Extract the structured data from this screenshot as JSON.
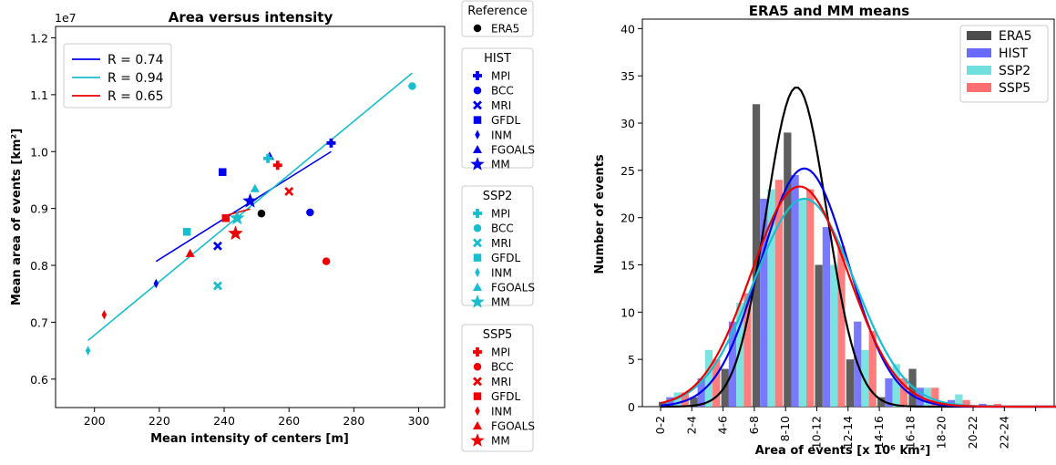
{
  "chart_data": [
    {
      "type": "scatter",
      "title": "Area versus intensity",
      "xlabel": "Mean intensity of centers [m]",
      "ylabel": "Mean area of events [km²]",
      "offset_label": "1e7",
      "xlim": [
        188,
        308
      ],
      "ylim": [
        5500000,
        12200000
      ],
      "xticks": [
        "200",
        "220",
        "240",
        "260",
        "280",
        "300"
      ],
      "yticks": [
        "0.6",
        "0.7",
        "0.8",
        "0.9",
        "1.0",
        "1.1",
        "1.2"
      ],
      "fit_lines": [
        {
          "label": "R = 0.74",
          "color": "#0000ee",
          "x": [
            219,
            273
          ],
          "y": [
            8070000,
            10000000
          ]
        },
        {
          "label": "R = 0.94",
          "color": "#17becf",
          "x": [
            198,
            298
          ],
          "y": [
            6680000,
            11380000
          ]
        },
        {
          "label": "R = 0.65",
          "color": "#ee0000",
          "x": [
            240,
            248
          ],
          "y": [
            8870000,
            8990000
          ]
        }
      ],
      "colors": {
        "HIST": "#0000ee",
        "SSP2": "#17becf",
        "SSP5": "#ee0000",
        "ERA5": "#000000"
      },
      "legend_groups": [
        {
          "title": "Reference",
          "items": [
            {
              "label": "ERA5",
              "marker": "circle"
            }
          ]
        },
        {
          "title": "HIST",
          "items": [
            {
              "label": "MPI",
              "marker": "plus"
            },
            {
              "label": "BCC",
              "marker": "circle"
            },
            {
              "label": "MRI",
              "marker": "x"
            },
            {
              "label": "GFDL",
              "marker": "square"
            },
            {
              "label": "INM",
              "marker": "thin_diamond"
            },
            {
              "label": "FGOALS",
              "marker": "triangle"
            },
            {
              "label": "MM",
              "marker": "star"
            }
          ]
        },
        {
          "title": "SSP2",
          "items": [
            {
              "label": "MPI",
              "marker": "plus"
            },
            {
              "label": "BCC",
              "marker": "circle"
            },
            {
              "label": "MRI",
              "marker": "x"
            },
            {
              "label": "GFDL",
              "marker": "square"
            },
            {
              "label": "INM",
              "marker": "thin_diamond"
            },
            {
              "label": "FGOALS",
              "marker": "triangle"
            },
            {
              "label": "MM",
              "marker": "star"
            }
          ]
        },
        {
          "title": "SSP5",
          "items": [
            {
              "label": "MPI",
              "marker": "plus"
            },
            {
              "label": "BCC",
              "marker": "circle"
            },
            {
              "label": "MRI",
              "marker": "x"
            },
            {
              "label": "GFDL",
              "marker": "square"
            },
            {
              "label": "INM",
              "marker": "thin_diamond"
            },
            {
              "label": "FGOALS",
              "marker": "triangle"
            },
            {
              "label": "MM",
              "marker": "star"
            }
          ]
        }
      ],
      "points": [
        {
          "series": "ERA5",
          "model": "ERA5",
          "marker": "circle",
          "x": 251.5,
          "y": 8910000
        },
        {
          "series": "HIST",
          "model": "MPI",
          "marker": "plus",
          "x": 273,
          "y": 10150000
        },
        {
          "series": "HIST",
          "model": "BCC",
          "marker": "circle",
          "x": 266.5,
          "y": 8930000
        },
        {
          "series": "HIST",
          "model": "MRI",
          "marker": "x",
          "x": 238,
          "y": 8340000
        },
        {
          "series": "HIST",
          "model": "GFDL",
          "marker": "square",
          "x": 239.5,
          "y": 9640000
        },
        {
          "series": "HIST",
          "model": "INM",
          "marker": "thin_diamond",
          "x": 219,
          "y": 7680000
        },
        {
          "series": "HIST",
          "model": "FGOALS",
          "marker": "triangle",
          "x": 254,
          "y": 9920000
        },
        {
          "series": "HIST",
          "model": "MM",
          "marker": "star",
          "x": 248,
          "y": 9130000
        },
        {
          "series": "SSP2",
          "model": "MPI",
          "marker": "plus",
          "x": 253.5,
          "y": 9880000
        },
        {
          "series": "SSP2",
          "model": "BCC",
          "marker": "circle",
          "x": 298,
          "y": 11150000
        },
        {
          "series": "SSP2",
          "model": "MRI",
          "marker": "x",
          "x": 238,
          "y": 7640000
        },
        {
          "series": "SSP2",
          "model": "GFDL",
          "marker": "square",
          "x": 228.5,
          "y": 8590000
        },
        {
          "series": "SSP2",
          "model": "INM",
          "marker": "thin_diamond",
          "x": 198,
          "y": 6500000
        },
        {
          "series": "SSP2",
          "model": "FGOALS",
          "marker": "triangle",
          "x": 249.5,
          "y": 9350000
        },
        {
          "series": "SSP2",
          "model": "MM",
          "marker": "star",
          "x": 244,
          "y": 8830000
        },
        {
          "series": "SSP5",
          "model": "MPI",
          "marker": "plus",
          "x": 256.5,
          "y": 9760000
        },
        {
          "series": "SSP5",
          "model": "BCC",
          "marker": "circle",
          "x": 271.5,
          "y": 8070000
        },
        {
          "series": "SSP5",
          "model": "MRI",
          "marker": "x",
          "x": 260,
          "y": 9300000
        },
        {
          "series": "SSP5",
          "model": "GFDL",
          "marker": "square",
          "x": 240.5,
          "y": 8830000
        },
        {
          "series": "SSP5",
          "model": "INM",
          "marker": "thin_diamond",
          "x": 203,
          "y": 7130000
        },
        {
          "series": "SSP5",
          "model": "FGOALS",
          "marker": "triangle",
          "x": 229.5,
          "y": 8210000
        },
        {
          "series": "SSP5",
          "model": "MM",
          "marker": "star",
          "x": 243.5,
          "y": 8560000
        }
      ]
    },
    {
      "type": "bar",
      "title": "ERA5 and MM means",
      "xlabel": "Area of events [x 10⁶ km²]",
      "ylabel": "Number of events",
      "ylim": [
        0,
        41
      ],
      "yticks": [
        "0",
        "5",
        "10",
        "15",
        "20",
        "25",
        "30",
        "35",
        "40"
      ],
      "categories": [
        "0-2",
        "2-4",
        "4-6",
        "6-8",
        "8-10",
        "10-12",
        "12-14",
        "14-16",
        "16-18",
        "18-20",
        "20-22",
        "22-24",
        "",
        ""
      ],
      "series": [
        {
          "name": "ERA5",
          "color": "#4d4d4d",
          "values": [
            0.5,
            1,
            4,
            32,
            29,
            15,
            5,
            1,
            4,
            0,
            0,
            0,
            0,
            0
          ]
        },
        {
          "name": "HIST",
          "color": "#6a6aff",
          "values": [
            1,
            3,
            9,
            22,
            24.5,
            19,
            9,
            3,
            2,
            0.7,
            0.3,
            0,
            0,
            0
          ]
        },
        {
          "name": "SSP2",
          "color": "#6fe0de",
          "values": [
            1.5,
            6,
            11,
            23,
            22,
            15,
            6,
            4.5,
            2,
            1.3,
            0.2,
            0.1,
            0,
            0
          ]
        },
        {
          "name": "SSP5",
          "color": "#ff6f6f",
          "values": [
            1.5,
            5,
            12,
            24,
            23,
            17,
            8,
            3,
            2,
            0.7,
            0.3,
            0.1,
            0.1,
            0
          ]
        }
      ],
      "gaussian_fits": [
        {
          "name": "ERA5",
          "color": "#000000",
          "mean": 8.7,
          "sd": 1.95,
          "peak": 33.8
        },
        {
          "name": "HIST",
          "color": "#0000ee",
          "mean": 9.2,
          "sd": 2.8,
          "peak": 25.2
        },
        {
          "name": "SSP2",
          "color": "#17becf",
          "mean": 9.2,
          "sd": 3.2,
          "peak": 22
        },
        {
          "name": "SSP5",
          "color": "#ee0000",
          "mean": 8.9,
          "sd": 3.1,
          "peak": 23.3
        }
      ],
      "legend": [
        "ERA5",
        "HIST",
        "SSP2",
        "SSP5"
      ]
    }
  ]
}
